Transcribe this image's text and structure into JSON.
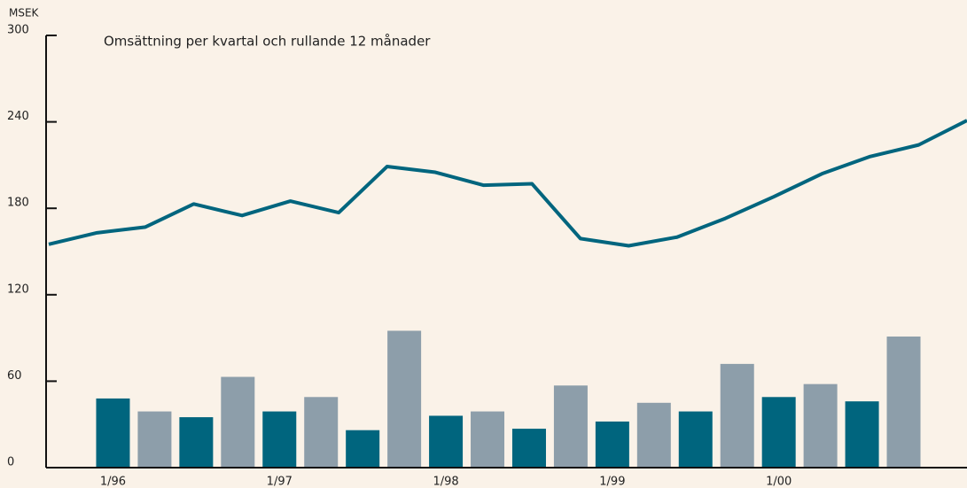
{
  "chart_data": {
    "type": "bar_line",
    "title": "Omsättning per kvartal och rullande 12 månader",
    "y_unit": "MSEK",
    "categories": [
      "1/96",
      null,
      null,
      null,
      "1/97",
      null,
      null,
      null,
      "1/98",
      null,
      null,
      null,
      "1/99",
      null,
      null,
      null,
      "1/00",
      null,
      null,
      null
    ],
    "ylim": [
      0,
      300
    ],
    "yticks": [
      0,
      60,
      120,
      180,
      240,
      300
    ],
    "series": [
      {
        "type": "bar",
        "colors": [
          "#00657e",
          "#8d9eaa",
          "#00657e",
          "#8d9eaa",
          "#00657e",
          "#8d9eaa",
          "#00657e",
          "#8d9eaa",
          "#00657e",
          "#8d9eaa",
          "#00657e",
          "#8d9eaa",
          "#00657e",
          "#8d9eaa",
          "#00657e",
          "#8d9eaa",
          "#00657e",
          "#8d9eaa",
          "#00657e",
          "#8d9eaa"
        ],
        "values": [
          48,
          39,
          35,
          63,
          39,
          49,
          26,
          95,
          36,
          39,
          27,
          57,
          32,
          45,
          39,
          72,
          49,
          58,
          46,
          91
        ]
      },
      {
        "type": "line",
        "color": "#00657e",
        "values": [
          155,
          163,
          167,
          183,
          175,
          185,
          177,
          209,
          205,
          196,
          197,
          159,
          154,
          160,
          173,
          188,
          204,
          216,
          224,
          241
        ]
      }
    ]
  }
}
